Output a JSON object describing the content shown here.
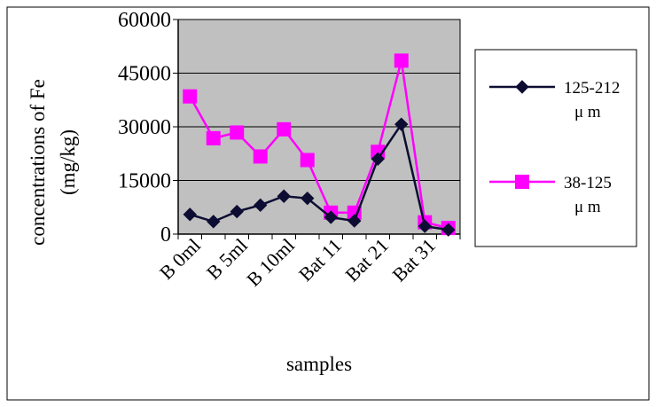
{
  "chart_data": {
    "type": "line",
    "title": "",
    "xlabel": "samples",
    "ylabel": "concentrations of Fe (mg/kg)",
    "ylabel_lines": [
      "concentrations of Fe",
      "(mg/kg)"
    ],
    "ylim": [
      0,
      60000
    ],
    "yticks": [
      0,
      15000,
      30000,
      45000,
      60000
    ],
    "grid": true,
    "legend_position": "right",
    "x": [
      1,
      2,
      3,
      4,
      5,
      6,
      7,
      8,
      9,
      10,
      11,
      12
    ],
    "tick_labels": [
      "B 0ml",
      "B 5ml",
      "B 10ml",
      "Bat 11",
      "Bat 21",
      "Bat 31"
    ],
    "tick_label_positions": [
      1.5,
      3.5,
      5.5,
      7.5,
      9.5,
      11.5
    ],
    "series": [
      {
        "name": "125-212 μm",
        "legend_lines": [
          "125-212",
          "μ m"
        ],
        "color": "#0d0d33",
        "marker": "diamond",
        "values": [
          5500,
          3500,
          6300,
          8100,
          10600,
          10000,
          4700,
          3700,
          21000,
          30700,
          2200,
          1200
        ]
      },
      {
        "name": "38-125 μm",
        "legend_lines": [
          "38-125",
          "μ m"
        ],
        "color": "#ff00ff",
        "marker": "square",
        "values": [
          38500,
          26800,
          28400,
          21700,
          29300,
          20700,
          6000,
          6000,
          23000,
          48500,
          3300,
          1700
        ]
      }
    ]
  }
}
